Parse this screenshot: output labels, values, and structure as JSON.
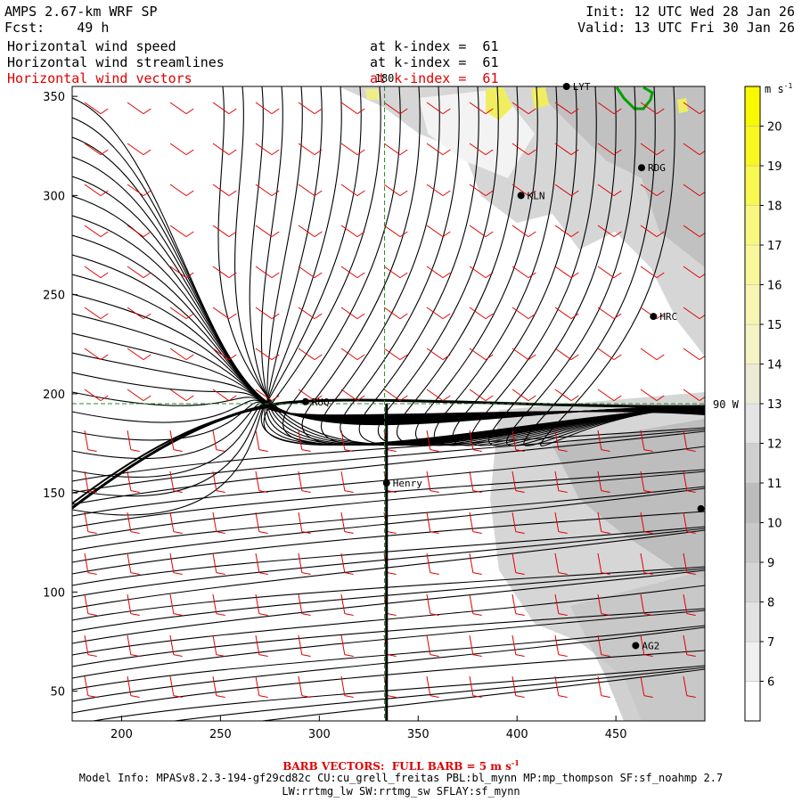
{
  "header": {
    "model_title": "AMPS 2.67-km WRF SP",
    "forecast_label": "Fcst:",
    "forecast_hours": "49 h",
    "init_label": "Init:",
    "init_time": "12 UTC Wed 28 Jan 26",
    "valid_label": "Valid:",
    "valid_time": "13 UTC Fri 30 Jan 26",
    "fields": [
      {
        "name": "Horizontal wind speed",
        "level": "at k-index =  61"
      },
      {
        "name": "Horizontal wind streamlines",
        "level": "at k-index =  61"
      },
      {
        "name": "Horizontal wind vectors",
        "level": "at k-index =  61"
      }
    ]
  },
  "map": {
    "x_axis": {
      "min": 175,
      "max": 495,
      "ticks": [
        200,
        250,
        300,
        350,
        400,
        450
      ]
    },
    "y_axis": {
      "min": 35,
      "max": 355,
      "ticks": [
        50,
        100,
        150,
        200,
        250,
        300,
        350
      ]
    },
    "meridian_label": "180",
    "parallel_label": "90 W",
    "meridian_x": 333,
    "parallel_y": 195,
    "cross_section_x": 334,
    "stations": [
      {
        "id": "LYT",
        "x": 425,
        "y": 355
      },
      {
        "id": "RDG",
        "x": 463,
        "y": 314
      },
      {
        "id": "KLN",
        "x": 402,
        "y": 300
      },
      {
        "id": "HRC",
        "x": 469,
        "y": 239
      },
      {
        "id": "RUQ",
        "x": 293,
        "y": 196
      },
      {
        "id": "Henry",
        "x": 334,
        "y": 155
      },
      {
        "id": "",
        "x": 493,
        "y": 142
      },
      {
        "id": "AG2",
        "x": 460,
        "y": 73
      }
    ]
  },
  "colorbar": {
    "unit": "m s",
    "unit_sup": "-1",
    "ticks": [
      "6",
      "7",
      "8",
      "9",
      "10",
      "11",
      "12",
      "13",
      "14",
      "15",
      "16",
      "17",
      "18",
      "19",
      "20"
    ]
  },
  "footer": {
    "barb_note": "BARB VECTORS:  FULL BARB = 5 m s",
    "barb_sup": "-1",
    "model_info_1": "Model Info: MPASv8.2.3-194-gf29cd82c CU:cu_grell_freitas PBL:bl_mynn MP:mp_thompson SF:sf_noahmp 2.7",
    "model_info_2": "LW:rrtmg_lw SW:rrtmg_sw SFLAY:sf_mynn"
  }
}
